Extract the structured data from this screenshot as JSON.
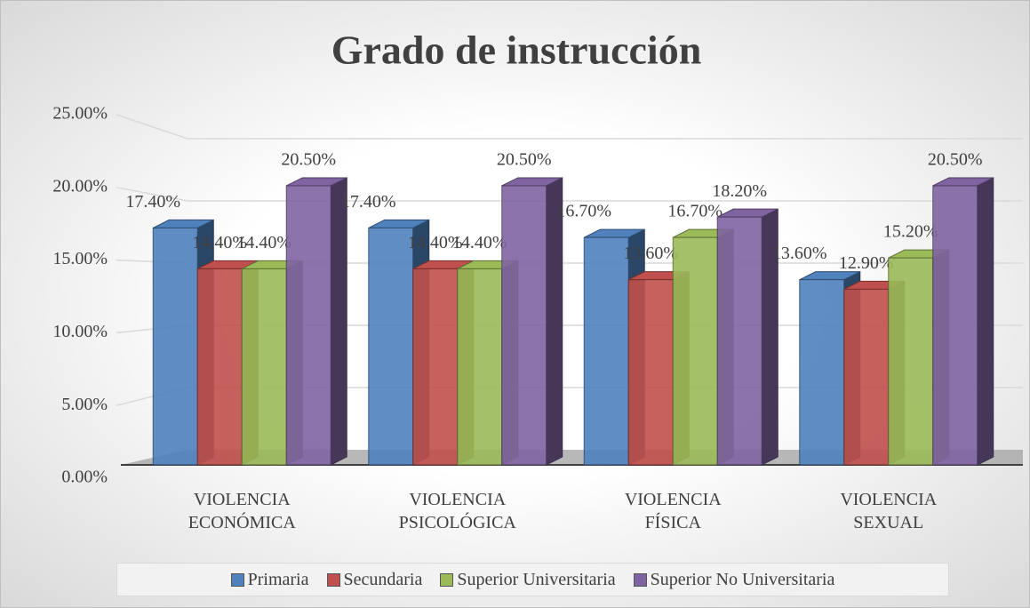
{
  "chart_data": {
    "type": "bar3d",
    "title": "Grado de instrucción",
    "categories": [
      "VIOLENCIA ECONÓMICA",
      "VIOLENCIA PSICOLÓGICA",
      "VIOLENCIA FÍSICA",
      "VIOLENCIA SEXUAL"
    ],
    "series": [
      {
        "name": "Primaria",
        "color": "#4f81bd",
        "values": [
          17.4,
          17.4,
          16.7,
          13.6
        ],
        "value_labels": [
          "17.40%",
          "17.40%",
          "16.70%",
          "13.60%"
        ]
      },
      {
        "name": "Secundaria",
        "color": "#c0504d",
        "values": [
          14.4,
          14.4,
          13.6,
          12.9
        ],
        "value_labels": [
          "14.40%",
          "14.40%",
          "13.60%",
          "12.90%"
        ]
      },
      {
        "name": "Superior Universitaria",
        "color": "#9bbb59",
        "values": [
          14.4,
          14.4,
          16.7,
          15.2
        ],
        "value_labels": [
          "14.40%",
          "14.40%",
          "16.70%",
          "15.20%"
        ]
      },
      {
        "name": "Superior No Universitaria",
        "color": "#8064a2",
        "values": [
          20.5,
          20.5,
          18.2,
          20.5
        ],
        "value_labels": [
          "20.50%",
          "20.50%",
          "18.20%",
          "20.50%"
        ]
      }
    ],
    "ylim": [
      0,
      25
    ],
    "yticks": [
      {
        "value": 0,
        "label": "0.00%"
      },
      {
        "value": 5,
        "label": "5.00%"
      },
      {
        "value": 10,
        "label": "10.00%"
      },
      {
        "value": 15,
        "label": "15.00%"
      },
      {
        "value": 20,
        "label": "20.00%"
      },
      {
        "value": 25,
        "label": "25.00%"
      }
    ],
    "grid": true,
    "legend": "bottom"
  }
}
